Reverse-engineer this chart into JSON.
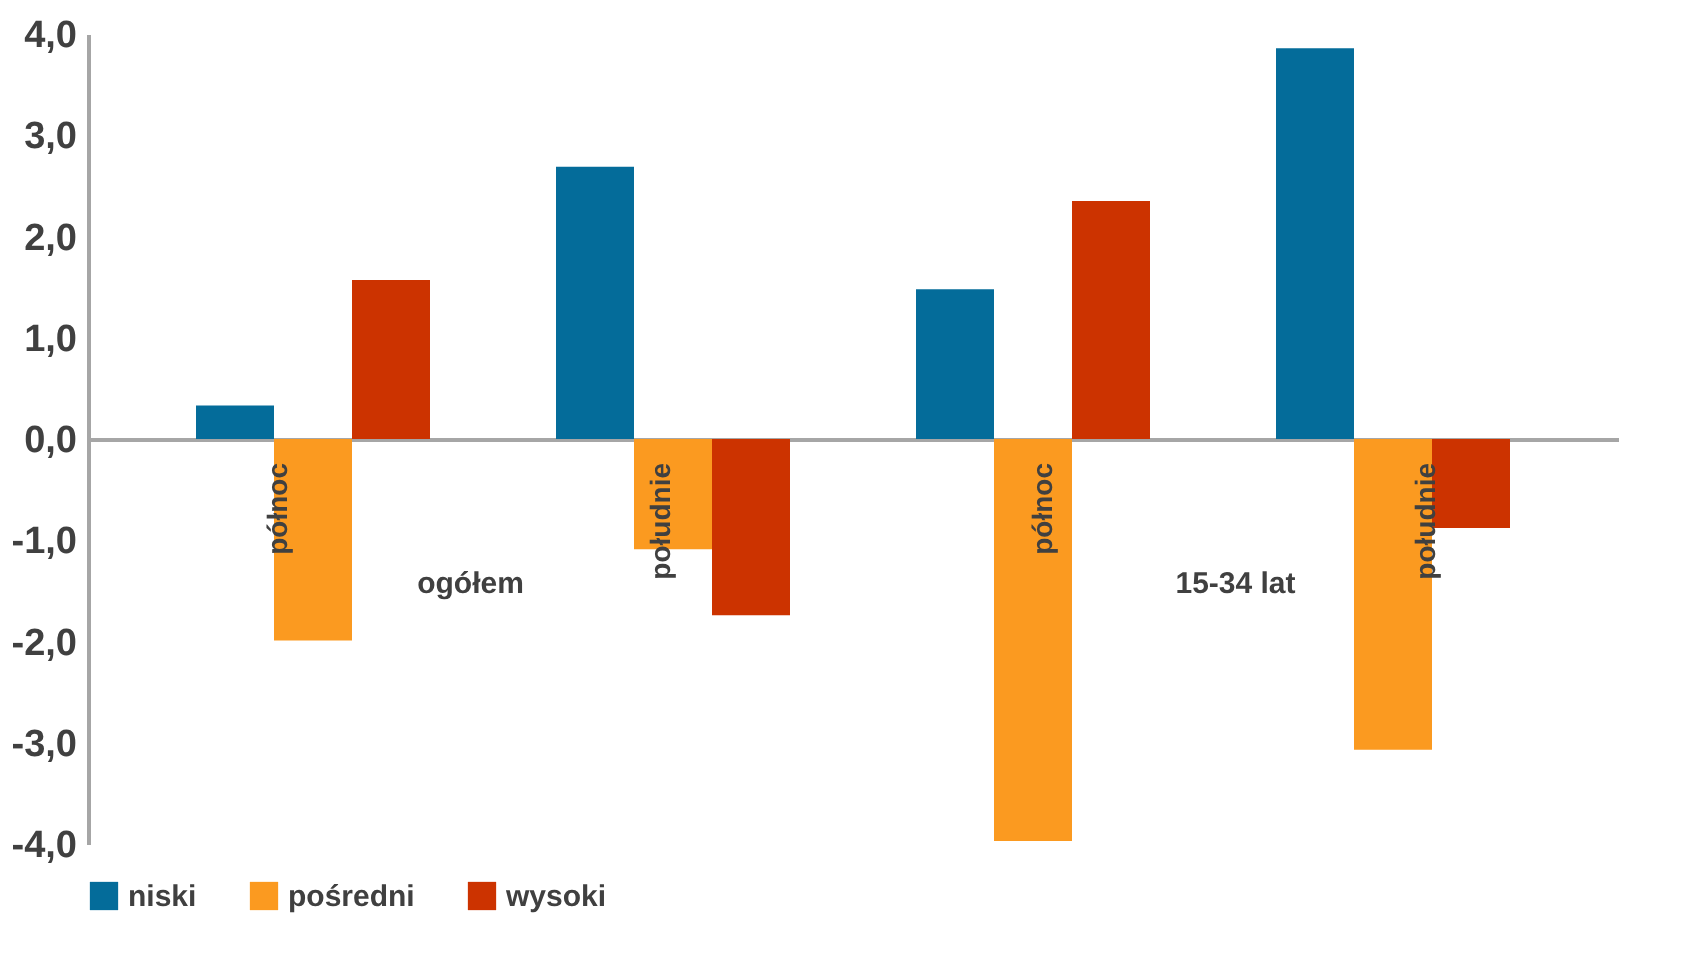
{
  "chart_data": {
    "type": "bar",
    "categories": [
      "północ",
      "południe",
      "północ",
      "południe"
    ],
    "series": [
      {
        "name": "niski",
        "color": "#046c9a",
        "values": [
          0.33,
          2.69,
          1.48,
          3.86
        ]
      },
      {
        "name": "pośredni",
        "color": "#fb9a20",
        "values": [
          -1.99,
          -1.09,
          -3.97,
          -3.07
        ]
      },
      {
        "name": "wysoki",
        "color": "#cc3300",
        "values": [
          1.57,
          -1.74,
          2.35,
          -0.88
        ]
      }
    ],
    "annotations": [
      "ogółem",
      "15-34 lat"
    ],
    "ylim": [
      -4,
      4
    ],
    "yticks": [
      {
        "value": -4,
        "label": "-4,0"
      },
      {
        "value": -3,
        "label": "-3,0"
      },
      {
        "value": -2,
        "label": "-2,0"
      },
      {
        "value": -1,
        "label": "-1,0"
      },
      {
        "value": 0,
        "label": "0,0"
      },
      {
        "value": 1,
        "label": "1,0"
      },
      {
        "value": 2,
        "label": "2,0"
      },
      {
        "value": 3,
        "label": "3,0"
      },
      {
        "value": 4,
        "label": "4,0"
      }
    ],
    "grid": false,
    "legend": "bottom"
  }
}
